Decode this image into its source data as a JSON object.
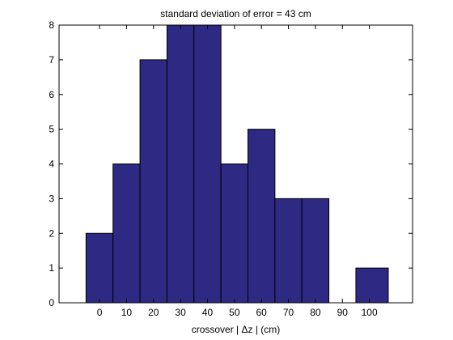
{
  "chart_data": {
    "type": "bar",
    "title": "standard deviation of error = 43 cm",
    "xlabel": "crossover |  Δz | (cm)",
    "ylabel": "",
    "x_ticks": [
      0,
      10,
      20,
      30,
      40,
      50,
      60,
      70,
      80,
      90,
      100
    ],
    "y_ticks": [
      0,
      1,
      2,
      3,
      4,
      5,
      6,
      7,
      8
    ],
    "xlim": [
      -15,
      116
    ],
    "ylim": [
      0,
      8
    ],
    "bars": [
      {
        "x0": -5,
        "x1": 5,
        "value": 2
      },
      {
        "x0": 5,
        "x1": 15,
        "value": 4
      },
      {
        "x0": 15,
        "x1": 25,
        "value": 7
      },
      {
        "x0": 25,
        "x1": 35,
        "value": 8
      },
      {
        "x0": 35,
        "x1": 45,
        "value": 8
      },
      {
        "x0": 45,
        "x1": 55,
        "value": 4
      },
      {
        "x0": 55,
        "x1": 65,
        "value": 5
      },
      {
        "x0": 65,
        "x1": 75,
        "value": 3
      },
      {
        "x0": 75,
        "x1": 85,
        "value": 3
      },
      {
        "x0": 95,
        "x1": 107,
        "value": 1
      }
    ],
    "bar_color": "#2e2a84",
    "edge_color": "#000000",
    "grid": false,
    "legend": "none"
  }
}
